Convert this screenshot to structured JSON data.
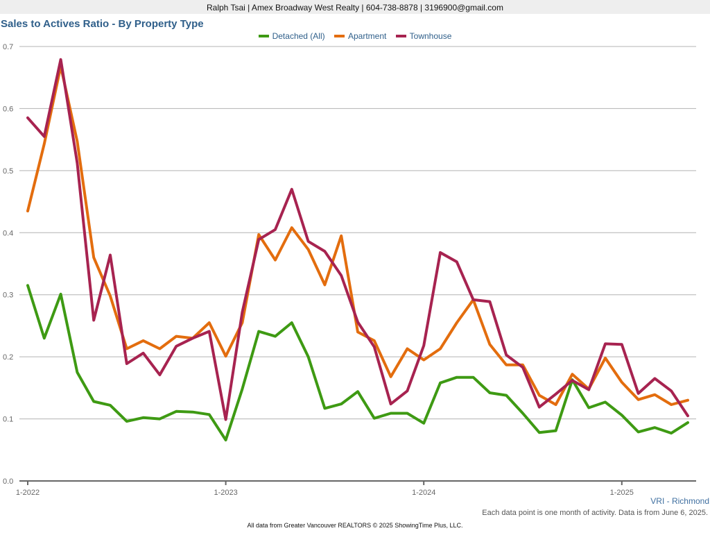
{
  "header": {
    "contact": "Ralph Tsai | Amex Broadway West Realty | 604-738-8878 | 3196900@gmail.com"
  },
  "region_label": "VRI - Richmond",
  "note": "Each data point is one month of activity. Data is from June 6, 2025.",
  "footer": "All data from Greater Vancouver REALTORS © 2025 ShowingTime Plus, LLC.",
  "colors": {
    "detached": "#3e9a13",
    "apartment": "#e36d0e",
    "townhouse": "#a72350",
    "grid": "#b3b3b3",
    "title": "#2f5f8a"
  },
  "chart_data": {
    "type": "line",
    "title": "Sales to Actives Ratio - By Property Type",
    "x_start": "1-2022",
    "x_tick_labels": [
      "1-2022",
      "1-2023",
      "1-2024",
      "1-2025"
    ],
    "ylim": [
      0,
      0.7
    ],
    "y_ticks": [
      "0.0",
      "0.1",
      "0.2",
      "0.3",
      "0.4",
      "0.5",
      "0.6",
      "0.7"
    ],
    "grid": true,
    "legend_position": "top-center",
    "series": [
      {
        "name": "Detached (All)",
        "color": "#3e9a13",
        "values": [
          0.315,
          0.23,
          0.301,
          0.175,
          0.128,
          0.122,
          0.096,
          0.102,
          0.1,
          0.112,
          0.111,
          0.107,
          0.066,
          0.148,
          0.241,
          0.233,
          0.255,
          0.2,
          0.117,
          0.124,
          0.144,
          0.101,
          0.109,
          0.109,
          0.093,
          0.158,
          0.167,
          0.167,
          0.142,
          0.138,
          0.109,
          0.078,
          0.081,
          0.163,
          0.118,
          0.127,
          0.106,
          0.079,
          0.086,
          0.077,
          0.094
        ]
      },
      {
        "name": "Apartment",
        "color": "#e36d0e",
        "values": [
          0.435,
          0.543,
          0.668,
          0.547,
          0.36,
          0.298,
          0.213,
          0.226,
          0.213,
          0.233,
          0.23,
          0.255,
          0.201,
          0.255,
          0.397,
          0.356,
          0.408,
          0.373,
          0.316,
          0.395,
          0.24,
          0.226,
          0.168,
          0.213,
          0.195,
          0.213,
          0.255,
          0.292,
          0.22,
          0.187,
          0.187,
          0.138,
          0.123,
          0.172,
          0.148,
          0.198,
          0.159,
          0.131,
          0.139,
          0.123,
          0.13
        ]
      },
      {
        "name": "Townhouse",
        "color": "#a72350",
        "values": [
          0.585,
          0.555,
          0.679,
          0.512,
          0.259,
          0.364,
          0.189,
          0.206,
          0.171,
          0.217,
          0.23,
          0.241,
          0.099,
          0.272,
          0.389,
          0.405,
          0.47,
          0.386,
          0.37,
          0.331,
          0.256,
          0.216,
          0.124,
          0.145,
          0.218,
          0.368,
          0.353,
          0.292,
          0.289,
          0.203,
          0.183,
          0.119,
          0.14,
          0.162,
          0.147,
          0.221,
          0.22,
          0.141,
          0.165,
          0.145,
          0.105
        ]
      }
    ]
  }
}
